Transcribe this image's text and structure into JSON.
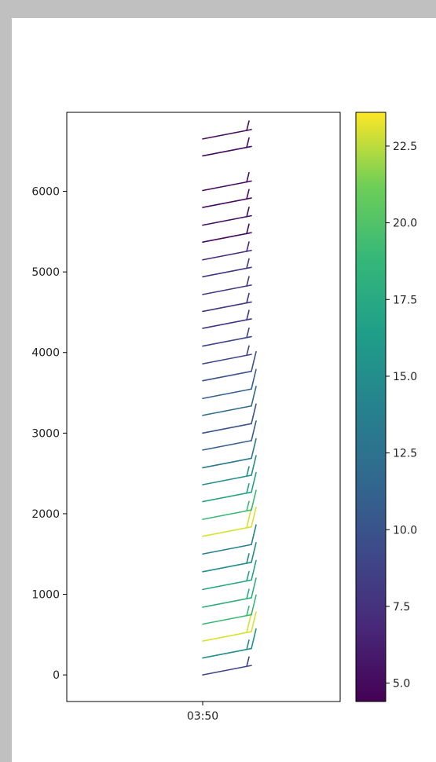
{
  "chart_data": {
    "type": "wind-barbs",
    "x_tick_labels": [
      "03:50"
    ],
    "y_ticks": [
      0,
      1000,
      2000,
      3000,
      4000,
      5000,
      6000
    ],
    "ylim": [
      -330,
      6980
    ],
    "colorbar": {
      "ticks": [
        "5.0",
        "7.5",
        "10.0",
        "12.5",
        "15.0",
        "17.5",
        "20.0",
        "22.5"
      ],
      "tick_values": [
        5.0,
        7.5,
        10.0,
        12.5,
        15.0,
        17.5,
        20.0,
        22.5
      ],
      "range": [
        4.4,
        23.6
      ],
      "colormap": "viridis"
    },
    "barbs": [
      {
        "height": 0,
        "speed": 9
      },
      {
        "height": 210,
        "speed": 15
      },
      {
        "height": 420,
        "speed": 23
      },
      {
        "height": 630,
        "speed": 19
      },
      {
        "height": 840,
        "speed": 18
      },
      {
        "height": 1060,
        "speed": 17
      },
      {
        "height": 1280,
        "speed": 15
      },
      {
        "height": 1500,
        "speed": 14
      },
      {
        "height": 1720,
        "speed": 23
      },
      {
        "height": 1930,
        "speed": 19
      },
      {
        "height": 2150,
        "speed": 17
      },
      {
        "height": 2360,
        "speed": 15
      },
      {
        "height": 2570,
        "speed": 13
      },
      {
        "height": 2790,
        "speed": 11
      },
      {
        "height": 3000,
        "speed": 10
      },
      {
        "height": 3220,
        "speed": 12
      },
      {
        "height": 3430,
        "speed": 11
      },
      {
        "height": 3650,
        "speed": 10
      },
      {
        "height": 3860,
        "speed": 9
      },
      {
        "height": 4080,
        "speed": 9
      },
      {
        "height": 4300,
        "speed": 8
      },
      {
        "height": 4510,
        "speed": 8
      },
      {
        "height": 4720,
        "speed": 8
      },
      {
        "height": 4940,
        "speed": 8
      },
      {
        "height": 5150,
        "speed": 7
      },
      {
        "height": 5370,
        "speed": 5
      },
      {
        "height": 5580,
        "speed": 5
      },
      {
        "height": 5800,
        "speed": 5
      },
      {
        "height": 6010,
        "speed": 5
      },
      {
        "height": 6440,
        "speed": 5
      },
      {
        "height": 6650,
        "speed": 5
      }
    ]
  }
}
